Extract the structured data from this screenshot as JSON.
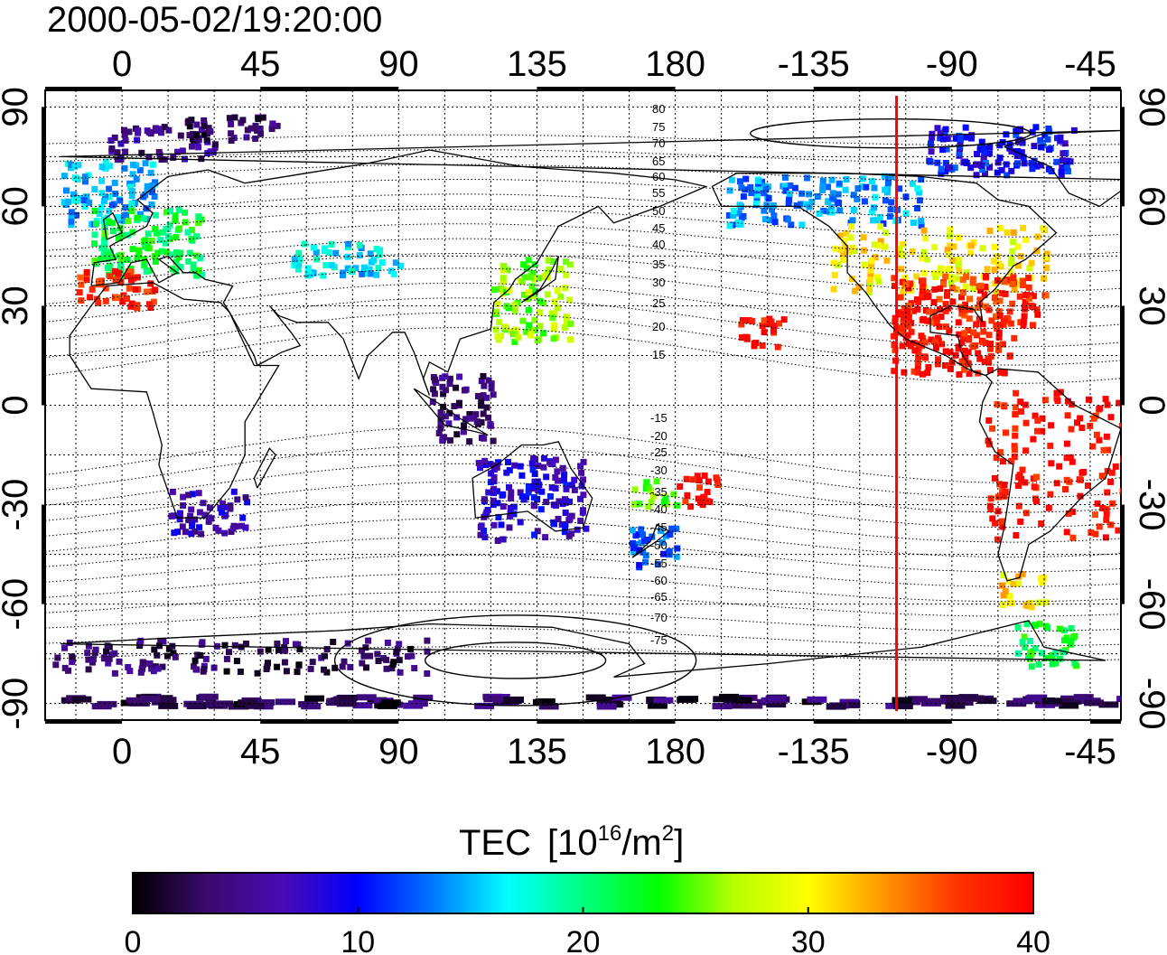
{
  "title": "2000-05-02/19:20:00",
  "map": {
    "lon_range": [
      -25,
      325
    ],
    "lat_range": [
      -95,
      95
    ],
    "top_lon_ticks": [
      "0",
      "45",
      "90",
      "135",
      "180",
      "-135",
      "-90",
      "-45"
    ],
    "bottom_lon_ticks": [
      "0",
      "45",
      "90",
      "135",
      "180",
      "-135",
      "-90",
      "-45"
    ],
    "lat_ticks_left": [
      "90",
      "60",
      "30",
      "0",
      "-30",
      "-60",
      "-90"
    ],
    "lat_ticks_right": [
      "90",
      "60",
      "30",
      "0",
      "-30",
      "-60",
      "-90"
    ],
    "grid": true,
    "marker_lon": -108,
    "marker_color": "#ff0000",
    "contour_labels_north": [
      "80",
      "75",
      "70",
      "65",
      "60",
      "55",
      "50",
      "45",
      "40",
      "35",
      "30",
      "25",
      "20",
      "15"
    ],
    "contour_labels_south": [
      "-15",
      "-20",
      "-25",
      "-30",
      "-35",
      "-40",
      "-45",
      "-50",
      "-55",
      "-60",
      "-65",
      "-70",
      "-75"
    ]
  },
  "colorbar": {
    "title_prefix": "TEC",
    "title_units_base": "[10",
    "title_units_exp": "16",
    "title_units_mid": "/m",
    "title_units_exp2": "2",
    "title_units_end": "]",
    "min": 0,
    "max": 40,
    "ticks": [
      "0",
      "10",
      "20",
      "30",
      "40"
    ],
    "colormap": [
      "#000000",
      "#3a0a6e",
      "#4b0bb4",
      "#0000ff",
      "#0078ff",
      "#00ffff",
      "#00ff7f",
      "#00ff00",
      "#b4ff00",
      "#ffff00",
      "#ff9600",
      "#ff3200",
      "#ff0000"
    ]
  },
  "chart_data": {
    "type": "scatter",
    "title": "2000-05-02/19:20:00",
    "xlabel": "",
    "ylabel": "",
    "value_label": "TEC [10^16/m^2]",
    "value_range": [
      0,
      40
    ],
    "regions": [
      {
        "lon": [
          -20,
          10
        ],
        "lat": [
          55,
          75
        ],
        "tec": 15
      },
      {
        "lon": [
          -10,
          25
        ],
        "lat": [
          40,
          60
        ],
        "tec": 22
      },
      {
        "lon": [
          -15,
          10
        ],
        "lat": [
          30,
          42
        ],
        "tec": 38
      },
      {
        "lon": [
          -5,
          30
        ],
        "lat": [
          75,
          85
        ],
        "tec": 5
      },
      {
        "lon": [
          20,
          50
        ],
        "lat": [
          80,
          88
        ],
        "tec": 3
      },
      {
        "lon": [
          15,
          40
        ],
        "lat": [
          -38,
          -25
        ],
        "tec": 7
      },
      {
        "lon": [
          120,
          145
        ],
        "lat": [
          20,
          45
        ],
        "tec": 26
      },
      {
        "lon": [
          55,
          90
        ],
        "lat": [
          40,
          50
        ],
        "tec": 16
      },
      {
        "lon": [
          100,
          120
        ],
        "lat": [
          -10,
          10
        ],
        "tec": 4
      },
      {
        "lon": [
          115,
          150
        ],
        "lat": [
          -40,
          -15
        ],
        "tec": 8
      },
      {
        "lon": [
          165,
          180
        ],
        "lat": [
          -48,
          -35
        ],
        "tec": 12
      },
      {
        "lon": [
          165,
          180
        ],
        "lat": [
          -30,
          -22
        ],
        "tec": 25
      },
      {
        "lon": [
          -180,
          -165
        ],
        "lat": [
          -30,
          -20
        ],
        "tec": 39
      },
      {
        "lon": [
          -160,
          -145
        ],
        "lat": [
          18,
          28
        ],
        "tec": 39
      },
      {
        "lon": [
          -165,
          -100
        ],
        "lat": [
          55,
          70
        ],
        "tec": 14
      },
      {
        "lon": [
          -130,
          -60
        ],
        "lat": [
          35,
          55
        ],
        "tec": 30
      },
      {
        "lon": [
          -110,
          -60
        ],
        "lat": [
          25,
          40
        ],
        "tec": 38
      },
      {
        "lon": [
          -110,
          -70
        ],
        "lat": [
          10,
          30
        ],
        "tec": 39
      },
      {
        "lon": [
          -80,
          -35
        ],
        "lat": [
          -40,
          5
        ],
        "tec": 39
      },
      {
        "lon": [
          -75,
          -60
        ],
        "lat": [
          -60,
          -50
        ],
        "tec": 31
      },
      {
        "lon": [
          -70,
          -50
        ],
        "lat": [
          -78,
          -65
        ],
        "tec": 22
      },
      {
        "lon": [
          -100,
          -50
        ],
        "lat": [
          70,
          85
        ],
        "tec": 10
      },
      {
        "lon": [
          -25,
          100
        ],
        "lat": [
          -80,
          -70
        ],
        "tec": 3
      },
      {
        "lon": [
          -20,
          325
        ],
        "lat": [
          -90,
          -87
        ],
        "tec": 3
      }
    ]
  }
}
